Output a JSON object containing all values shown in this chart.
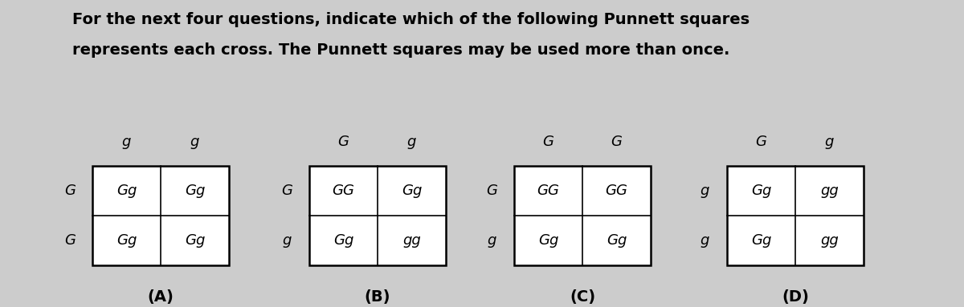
{
  "title_line1": "For the next four questions, indicate which of the following Punnett squares",
  "title_line2": "represents each cross. The Punnett squares may be used more than once.",
  "bg_color": "#cccccc",
  "squares": [
    {
      "label": "(A)",
      "col_headers": [
        "g",
        "g"
      ],
      "row_headers": [
        "G",
        "G"
      ],
      "cells": [
        [
          "Gg",
          "Gg"
        ],
        [
          "Gg",
          "Gg"
        ]
      ]
    },
    {
      "label": "(B)",
      "col_headers": [
        "G",
        "g"
      ],
      "row_headers": [
        "G",
        "g"
      ],
      "cells": [
        [
          "GG",
          "Gg"
        ],
        [
          "Gg",
          "gg"
        ]
      ]
    },
    {
      "label": "(C)",
      "col_headers": [
        "G",
        "G"
      ],
      "row_headers": [
        "G",
        "g"
      ],
      "cells": [
        [
          "GG",
          "GG"
        ],
        [
          "Gg",
          "Gg"
        ]
      ]
    },
    {
      "label": "(D)",
      "col_headers": [
        "G",
        "g"
      ],
      "row_headers": [
        "g",
        "g"
      ],
      "cells": [
        [
          "Gg",
          "gg"
        ],
        [
          "Gg",
          "gg"
        ]
      ]
    }
  ],
  "title_fontsize": 14,
  "header_fontsize": 13,
  "cell_fontsize": 13,
  "label_fontsize": 14
}
